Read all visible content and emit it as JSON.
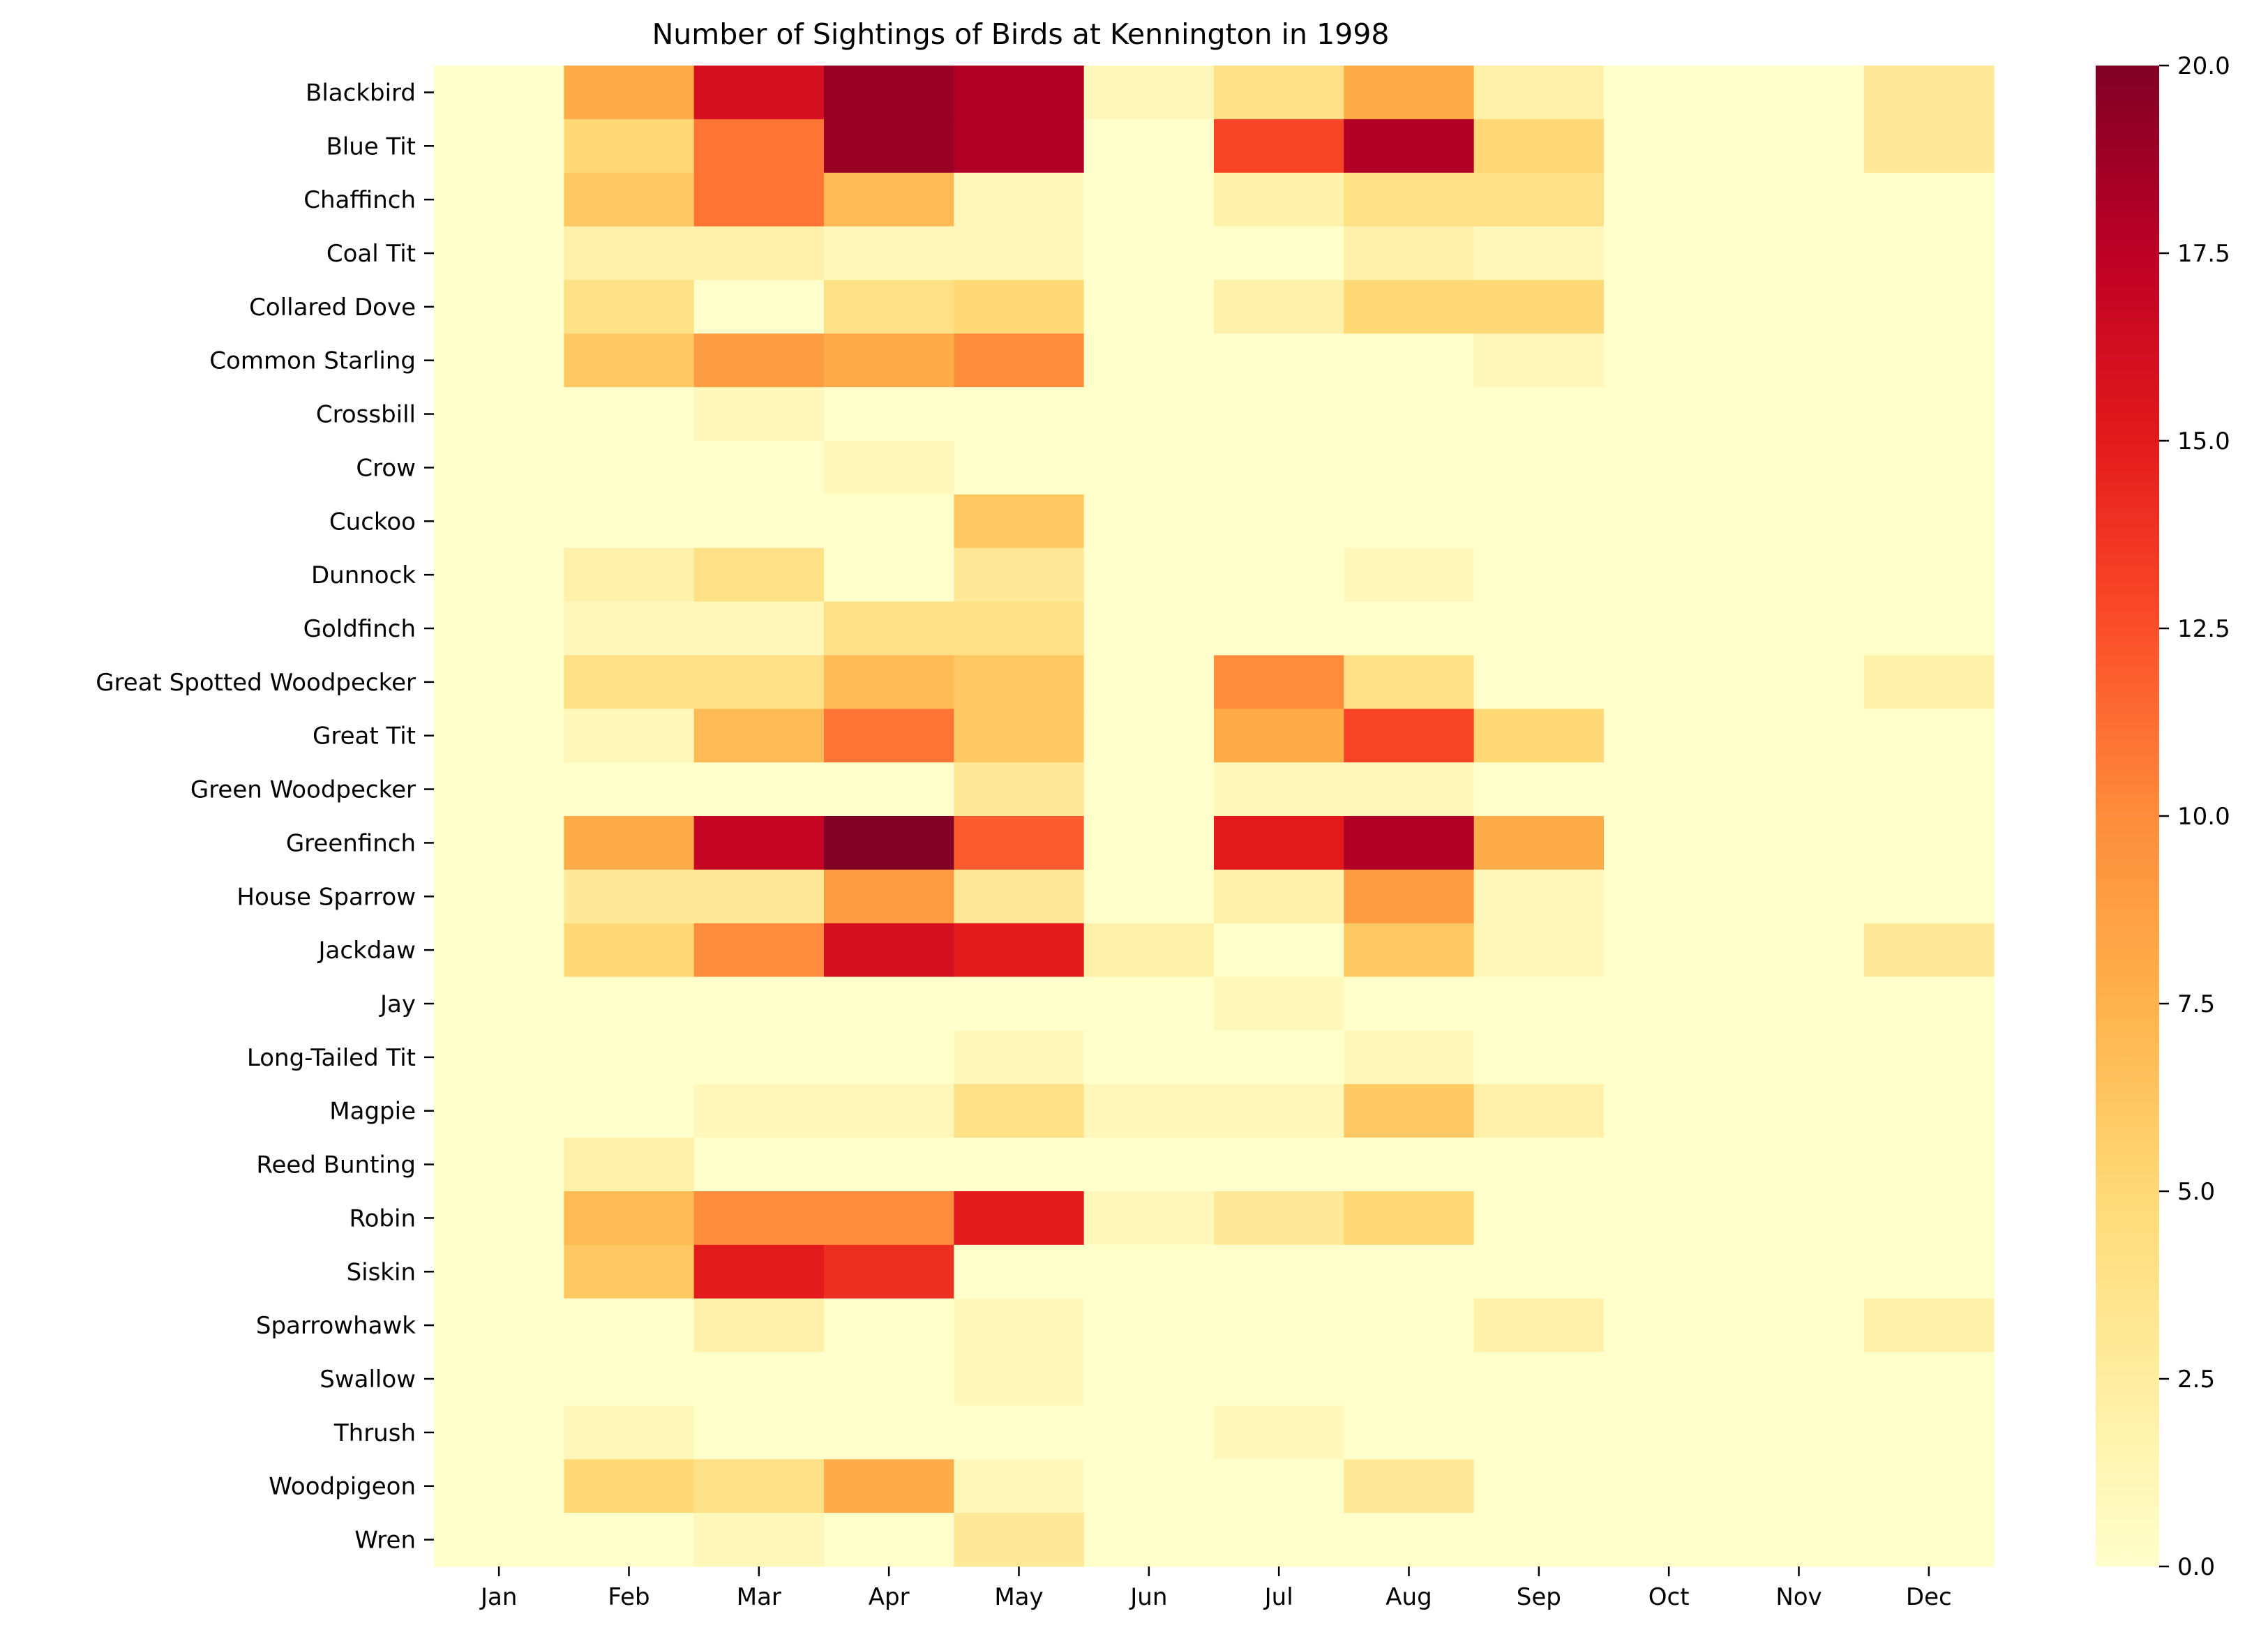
{
  "chart_data": {
    "type": "heatmap",
    "title": "Number of Sightings of Birds at Kennington in 1998",
    "xlabel": "",
    "ylabel": "",
    "x": [
      "Jan",
      "Feb",
      "Mar",
      "Apr",
      "May",
      "Jun",
      "Jul",
      "Aug",
      "Sep",
      "Oct",
      "Nov",
      "Dec"
    ],
    "y": [
      "Blackbird",
      "Blue Tit",
      "Chaffinch",
      "Coal Tit",
      "Collared Dove",
      "Common Starling",
      "Crossbill",
      "Crow",
      "Cuckoo",
      "Dunnock",
      "Goldfinch",
      "Great Spotted Woodpecker",
      "Great Tit",
      "Green Woodpecker",
      "Greenfinch",
      "House Sparrow",
      "Jackdaw",
      "Jay",
      "Long-Tailed Tit",
      "Magpie",
      "Reed Bunting",
      "Robin",
      "Siskin",
      "Sparrowhawk",
      "Swallow",
      "Thrush",
      "Woodpigeon",
      "Wren"
    ],
    "values": [
      [
        0,
        8,
        16,
        19,
        18,
        1,
        4,
        8,
        2,
        0,
        0,
        3
      ],
      [
        0,
        5,
        11,
        19,
        18,
        0,
        13,
        18,
        5,
        0,
        0,
        3
      ],
      [
        0,
        6,
        11,
        7,
        1,
        0,
        2,
        4,
        4,
        0,
        0,
        0
      ],
      [
        0,
        2,
        2,
        1,
        1,
        0,
        0,
        2,
        1,
        0,
        0,
        0
      ],
      [
        0,
        4,
        0,
        4,
        5,
        0,
        2,
        5,
        5,
        0,
        0,
        0
      ],
      [
        0,
        6,
        9,
        8,
        10,
        0,
        0,
        0,
        1,
        0,
        0,
        0
      ],
      [
        0,
        0,
        1,
        0,
        0,
        0,
        0,
        0,
        0,
        0,
        0,
        0
      ],
      [
        0,
        0,
        0,
        1,
        0,
        0,
        0,
        0,
        0,
        0,
        0,
        0
      ],
      [
        0,
        0,
        0,
        0,
        6,
        0,
        0,
        0,
        0,
        0,
        0,
        0
      ],
      [
        0,
        2,
        4,
        0,
        3,
        0,
        0,
        1,
        0,
        0,
        0,
        0
      ],
      [
        0,
        1,
        1,
        4,
        4,
        0,
        0,
        0,
        0,
        0,
        0,
        0
      ],
      [
        0,
        4,
        4,
        7,
        6,
        0,
        10,
        4,
        0,
        0,
        0,
        2
      ],
      [
        0,
        1,
        7,
        11,
        6,
        0,
        8,
        13,
        5,
        0,
        0,
        0
      ],
      [
        0,
        0,
        0,
        0,
        3,
        0,
        1,
        1,
        0,
        0,
        0,
        0
      ],
      [
        0,
        8,
        17,
        20,
        12,
        0,
        15,
        18,
        8,
        0,
        0,
        0
      ],
      [
        0,
        3,
        3,
        9,
        3,
        0,
        2,
        9,
        1,
        0,
        0,
        0
      ],
      [
        0,
        5,
        10,
        16,
        15,
        2,
        0,
        6,
        1,
        0,
        0,
        3
      ],
      [
        0,
        0,
        0,
        0,
        0,
        0,
        1,
        0,
        0,
        0,
        0,
        0
      ],
      [
        0,
        0,
        0,
        0,
        1,
        0,
        0,
        1,
        0,
        0,
        0,
        0
      ],
      [
        0,
        0,
        1,
        1,
        4,
        1,
        1,
        6,
        2,
        0,
        0,
        0
      ],
      [
        0,
        2,
        0,
        0,
        0,
        0,
        0,
        0,
        0,
        0,
        0,
        0
      ],
      [
        0,
        7,
        10,
        10,
        15,
        1,
        3,
        5,
        0,
        0,
        0,
        0
      ],
      [
        0,
        6,
        15,
        14,
        0,
        0,
        0,
        0,
        0,
        0,
        0,
        0
      ],
      [
        0,
        0,
        2,
        0,
        1,
        0,
        0,
        0,
        2,
        0,
        0,
        2
      ],
      [
        0,
        0,
        0,
        0,
        1,
        0,
        0,
        0,
        0,
        0,
        0,
        0
      ],
      [
        0,
        1,
        0,
        0,
        0,
        0,
        1,
        0,
        0,
        0,
        0,
        0
      ],
      [
        0,
        5,
        4,
        8,
        1,
        0,
        0,
        3,
        0,
        0,
        0,
        0
      ],
      [
        0,
        0,
        1,
        0,
        3,
        0,
        0,
        0,
        0,
        0,
        0,
        0
      ]
    ],
    "colorbar": {
      "min": 0,
      "max": 20,
      "ticks": [
        "0.0",
        "2.5",
        "5.0",
        "7.5",
        "10.0",
        "12.5",
        "15.0",
        "17.5",
        "20.0"
      ]
    },
    "colormap": [
      "#ffffcc",
      "#ffeda0",
      "#fed976",
      "#feb24c",
      "#fd8d3c",
      "#fc4e2a",
      "#e31a1c",
      "#bd0026",
      "#800026"
    ],
    "grid": false
  }
}
